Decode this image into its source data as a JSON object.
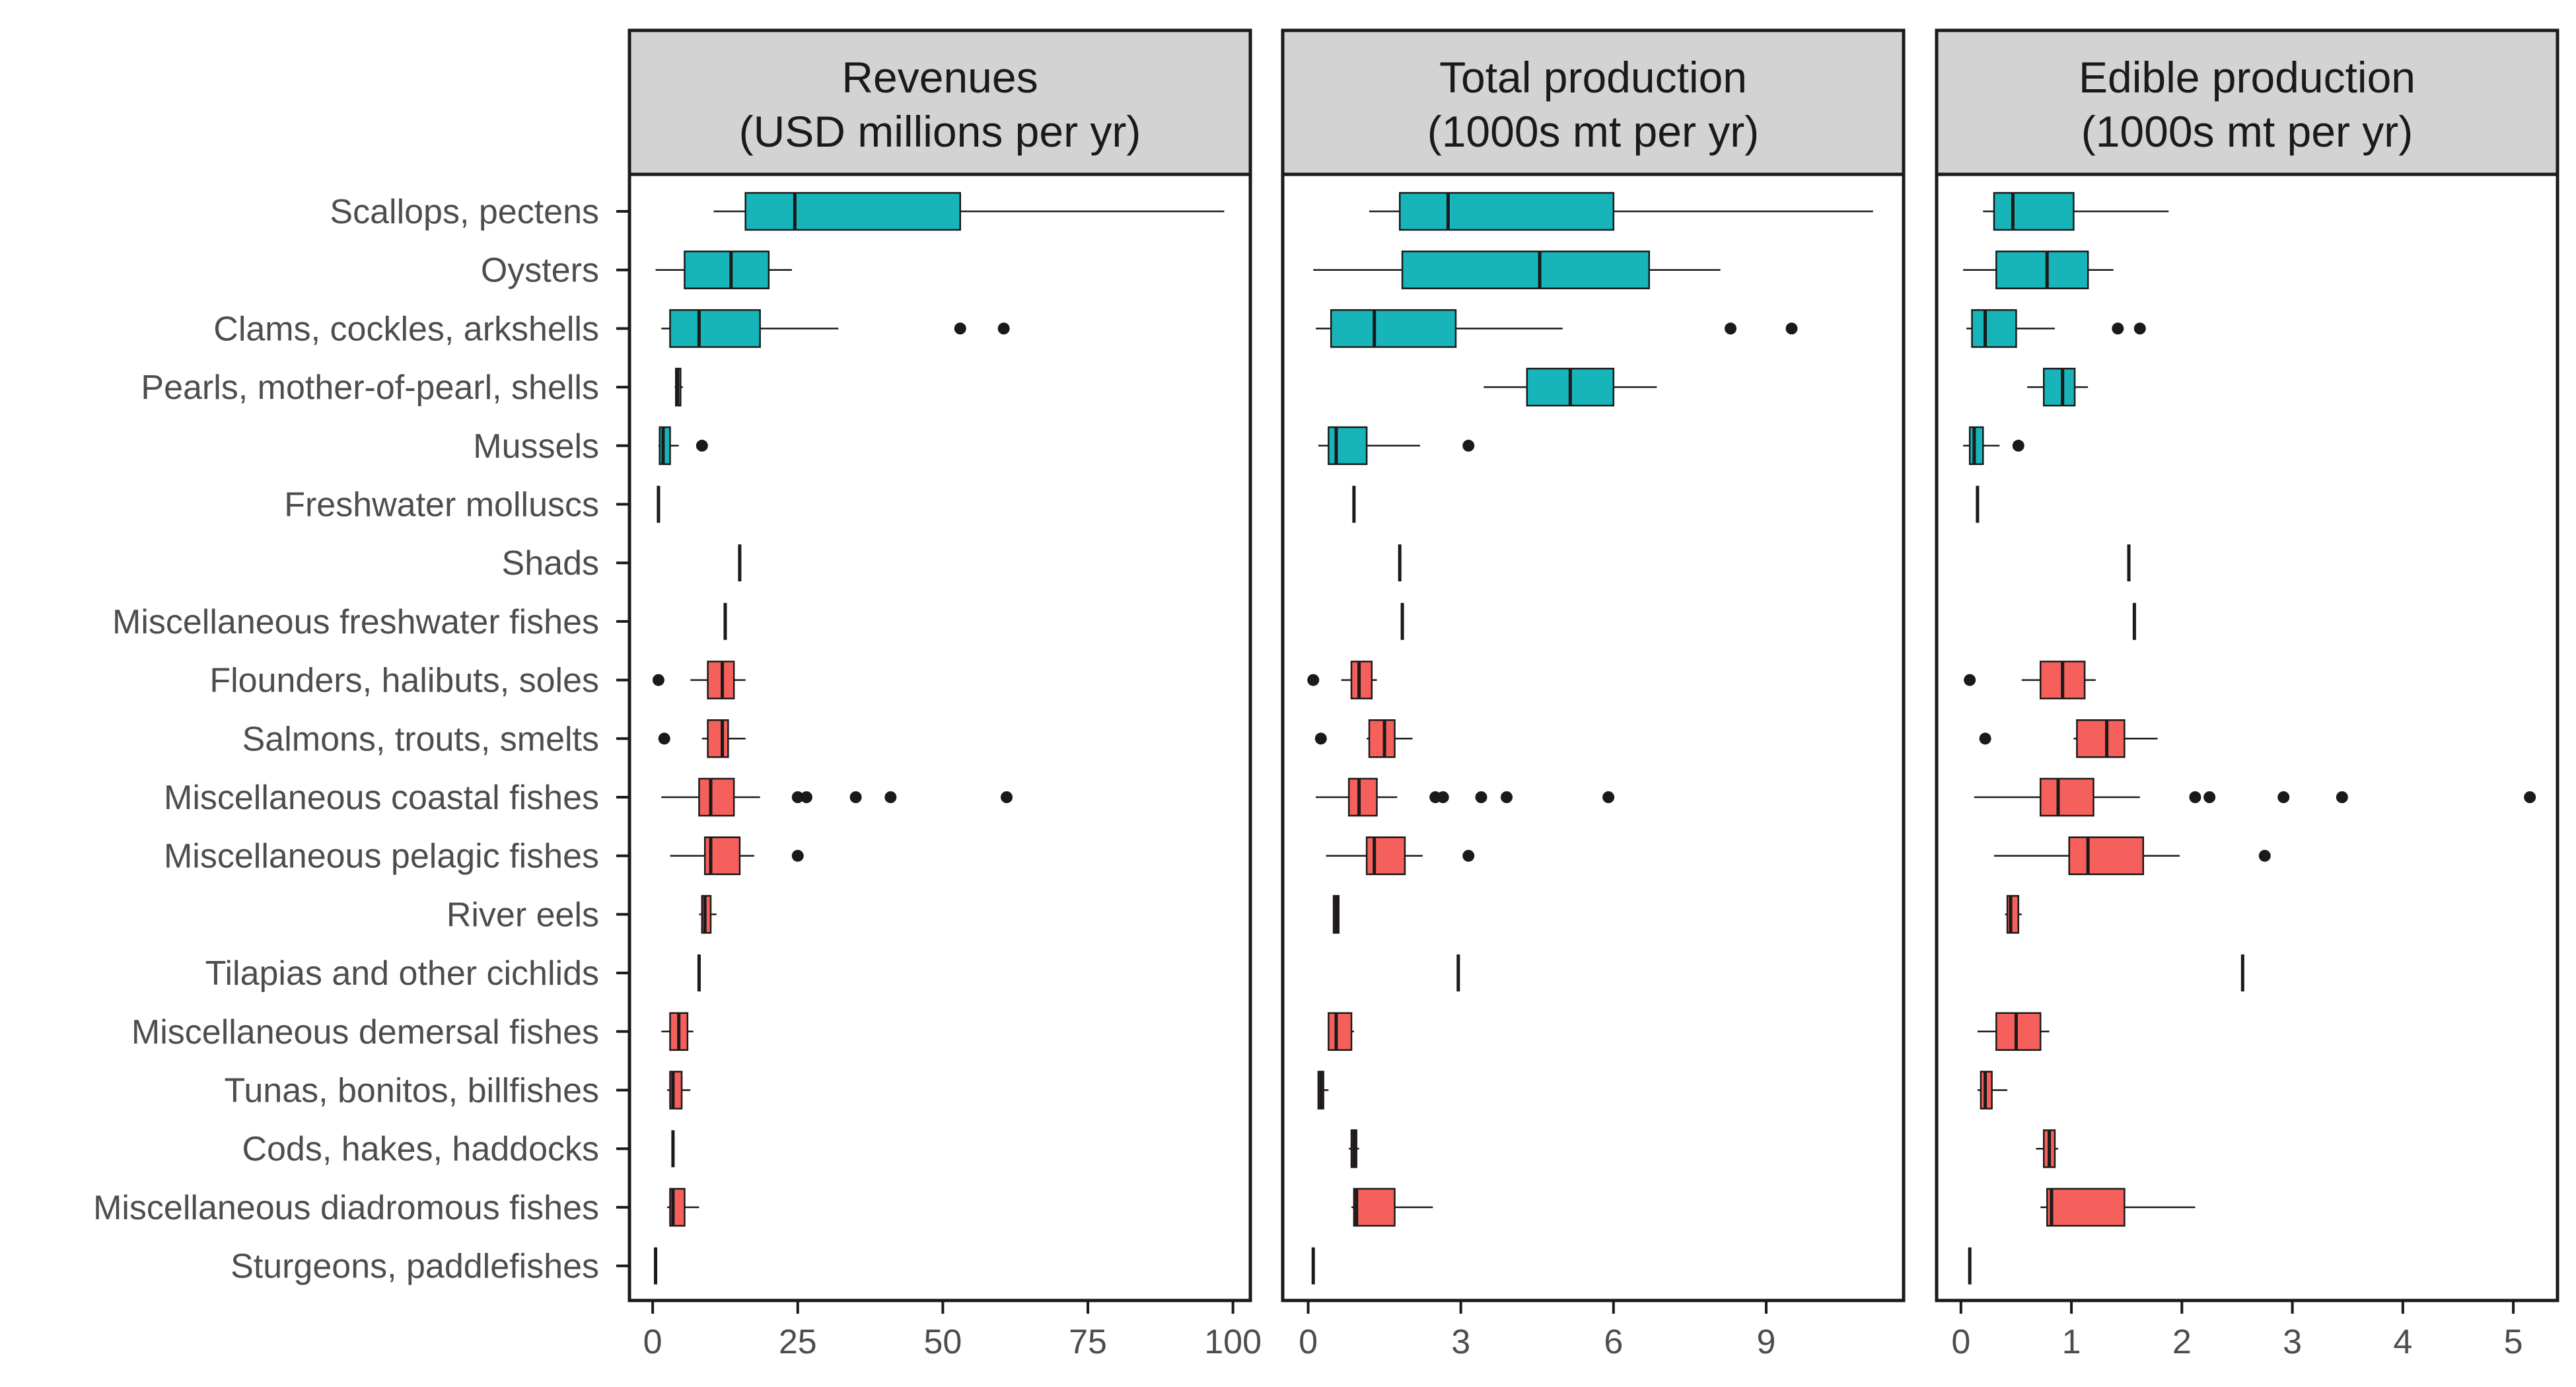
{
  "chart_data": {
    "type": "boxplot",
    "orientation": "horizontal",
    "categories": [
      "Scallops, pectens",
      "Oysters",
      "Clams, cockles, arkshells",
      "Pearls, mother-of-pearl, shells",
      "Mussels",
      "Freshwater molluscs",
      "Shads",
      "Miscellaneous freshwater fishes",
      "Flounders, halibuts, soles",
      "Salmons, trouts, smelts",
      "Miscellaneous coastal fishes",
      "Miscellaneous pelagic fishes",
      "River eels",
      "Tilapias and other cichlids",
      "Miscellaneous demersal fishes",
      "Tunas, bonitos, billfishes",
      "Cods, hakes, haddocks",
      "Miscellaneous diadromous fishes",
      "Sturgeons, paddlefishes"
    ],
    "category_group": [
      "mollusc",
      "mollusc",
      "mollusc",
      "mollusc",
      "mollusc",
      "mollusc",
      "fish",
      "fish",
      "fish",
      "fish",
      "fish",
      "fish",
      "fish",
      "fish",
      "fish",
      "fish",
      "fish",
      "fish",
      "fish"
    ],
    "colors": {
      "mollusc": "#17b4b9",
      "fish": "#f6605c",
      "outline": "#1a1a1a",
      "strip": "#d3d3d3"
    },
    "facets": [
      {
        "title_line1": "Revenues",
        "title_line2": "(USD millions per yr)",
        "xlim": [
          -4,
          103
        ],
        "ticks": [
          "0",
          "25",
          "50",
          "75",
          "100"
        ],
        "tick_values": [
          0,
          25,
          50,
          75,
          100
        ],
        "boxes": [
          {
            "whisker_low": 10.5,
            "q1": 16,
            "median": 24.5,
            "q3": 53,
            "whisker_high": 98.5,
            "outliers": []
          },
          {
            "whisker_low": 0.5,
            "q1": 5.5,
            "median": 13.5,
            "q3": 20,
            "whisker_high": 24,
            "outliers": []
          },
          {
            "whisker_low": 1.5,
            "q1": 3,
            "median": 8,
            "q3": 18.5,
            "whisker_high": 32,
            "outliers": [
              53,
              60.5
            ]
          },
          {
            "whisker_low": 3.8,
            "q1": 4,
            "median": 4.3,
            "q3": 4.8,
            "whisker_high": 5.2,
            "outliers": []
          },
          {
            "whisker_low": 1,
            "q1": 1.2,
            "median": 1.8,
            "q3": 3,
            "whisker_high": 4.5,
            "outliers": [
              8.5
            ]
          },
          {
            "whisker_low": 1,
            "q1": 1,
            "median": 1,
            "q3": 1,
            "whisker_high": 1,
            "outliers": []
          },
          {
            "whisker_low": 15,
            "q1": 15,
            "median": 15,
            "q3": 15,
            "whisker_high": 15,
            "outliers": []
          },
          {
            "whisker_low": 12.5,
            "q1": 12.5,
            "median": 12.5,
            "q3": 12.5,
            "whisker_high": 12.5,
            "outliers": []
          },
          {
            "whisker_low": 6.5,
            "q1": 9.5,
            "median": 12,
            "q3": 14,
            "whisker_high": 16,
            "outliers": [
              1
            ]
          },
          {
            "whisker_low": 8.5,
            "q1": 9.5,
            "median": 12,
            "q3": 13,
            "whisker_high": 16,
            "outliers": [
              2
            ]
          },
          {
            "whisker_low": 1.5,
            "q1": 8,
            "median": 10,
            "q3": 14,
            "whisker_high": 18.5,
            "outliers": [
              25,
              26.5,
              35,
              41,
              61
            ]
          },
          {
            "whisker_low": 3,
            "q1": 9,
            "median": 10,
            "q3": 15,
            "whisker_high": 17.5,
            "outliers": [
              25
            ]
          },
          {
            "whisker_low": 8,
            "q1": 8.5,
            "median": 9,
            "q3": 10,
            "whisker_high": 11,
            "outliers": []
          },
          {
            "whisker_low": 8,
            "q1": 8,
            "median": 8,
            "q3": 8,
            "whisker_high": 8,
            "outliers": []
          },
          {
            "whisker_low": 1.5,
            "q1": 3,
            "median": 4.5,
            "q3": 6,
            "whisker_high": 7,
            "outliers": []
          },
          {
            "whisker_low": 2.5,
            "q1": 3,
            "median": 3.5,
            "q3": 5,
            "whisker_high": 6.5,
            "outliers": []
          },
          {
            "whisker_low": 3.5,
            "q1": 3.5,
            "median": 3.5,
            "q3": 3.5,
            "whisker_high": 3.5,
            "outliers": []
          },
          {
            "whisker_low": 2.5,
            "q1": 3,
            "median": 3.5,
            "q3": 5.5,
            "whisker_high": 8,
            "outliers": []
          },
          {
            "whisker_low": 0.5,
            "q1": 0.5,
            "median": 0.5,
            "q3": 0.5,
            "whisker_high": 0.5,
            "outliers": []
          }
        ]
      },
      {
        "title_line1": "Total production",
        "title_line2": "(1000s mt per yr)",
        "xlim": [
          -0.5,
          11.7
        ],
        "ticks": [
          "0",
          "3",
          "6",
          "9"
        ],
        "tick_values": [
          0,
          3,
          6,
          9
        ],
        "boxes": [
          {
            "whisker_low": 1.2,
            "q1": 1.8,
            "median": 2.75,
            "q3": 6,
            "whisker_high": 11.1,
            "outliers": []
          },
          {
            "whisker_low": 0.1,
            "q1": 1.85,
            "median": 4.55,
            "q3": 6.7,
            "whisker_high": 8.1,
            "outliers": []
          },
          {
            "whisker_low": 0.15,
            "q1": 0.45,
            "median": 1.3,
            "q3": 2.9,
            "whisker_high": 5,
            "outliers": [
              8.3,
              9.5
            ]
          },
          {
            "whisker_low": 3.45,
            "q1": 4.3,
            "median": 5.15,
            "q3": 6,
            "whisker_high": 6.85,
            "outliers": []
          },
          {
            "whisker_low": 0.2,
            "q1": 0.4,
            "median": 0.55,
            "q3": 1.15,
            "whisker_high": 2.2,
            "outliers": [
              3.15
            ]
          },
          {
            "whisker_low": 0.9,
            "q1": 0.9,
            "median": 0.9,
            "q3": 0.9,
            "whisker_high": 0.9,
            "outliers": []
          },
          {
            "whisker_low": 1.8,
            "q1": 1.8,
            "median": 1.8,
            "q3": 1.8,
            "whisker_high": 1.8,
            "outliers": []
          },
          {
            "whisker_low": 1.85,
            "q1": 1.85,
            "median": 1.85,
            "q3": 1.85,
            "whisker_high": 1.85,
            "outliers": []
          },
          {
            "whisker_low": 0.65,
            "q1": 0.85,
            "median": 1,
            "q3": 1.25,
            "whisker_high": 1.35,
            "outliers": [
              0.1
            ]
          },
          {
            "whisker_low": 1.15,
            "q1": 1.2,
            "median": 1.5,
            "q3": 1.7,
            "whisker_high": 2.05,
            "outliers": [
              0.25
            ]
          },
          {
            "whisker_low": 0.15,
            "q1": 0.8,
            "median": 1,
            "q3": 1.35,
            "whisker_high": 1.75,
            "outliers": [
              2.5,
              2.65,
              3.4,
              3.9,
              5.9
            ]
          },
          {
            "whisker_low": 0.35,
            "q1": 1.15,
            "median": 1.3,
            "q3": 1.9,
            "whisker_high": 2.25,
            "outliers": [
              3.15
            ]
          },
          {
            "whisker_low": 0.5,
            "q1": 0.5,
            "median": 0.55,
            "q3": 0.6,
            "whisker_high": 0.6,
            "outliers": []
          },
          {
            "whisker_low": 2.95,
            "q1": 2.95,
            "median": 2.95,
            "q3": 2.95,
            "whisker_high": 2.95,
            "outliers": []
          },
          {
            "whisker_low": 0.4,
            "q1": 0.4,
            "median": 0.55,
            "q3": 0.85,
            "whisker_high": 0.9,
            "outliers": []
          },
          {
            "whisker_low": 0.2,
            "q1": 0.2,
            "median": 0.25,
            "q3": 0.3,
            "whisker_high": 0.4,
            "outliers": []
          },
          {
            "whisker_low": 0.8,
            "q1": 0.85,
            "median": 0.9,
            "q3": 0.95,
            "whisker_high": 1,
            "outliers": []
          },
          {
            "whisker_low": 0.85,
            "q1": 0.9,
            "median": 0.95,
            "q3": 1.7,
            "whisker_high": 2.45,
            "outliers": []
          },
          {
            "whisker_low": 0.1,
            "q1": 0.1,
            "median": 0.1,
            "q3": 0.1,
            "whisker_high": 0.1,
            "outliers": []
          }
        ]
      },
      {
        "title_line1": "Edible production",
        "title_line2": "(1000s mt per yr)",
        "xlim": [
          -0.22,
          5.4
        ],
        "ticks": [
          "0",
          "1",
          "2",
          "3",
          "4",
          "5"
        ],
        "tick_values": [
          0,
          1,
          2,
          3,
          4,
          5
        ],
        "boxes": [
          {
            "whisker_low": 0.2,
            "q1": 0.3,
            "median": 0.47,
            "q3": 1.02,
            "whisker_high": 1.88,
            "outliers": []
          },
          {
            "whisker_low": 0.02,
            "q1": 0.32,
            "median": 0.78,
            "q3": 1.15,
            "whisker_high": 1.38,
            "outliers": []
          },
          {
            "whisker_low": 0.05,
            "q1": 0.1,
            "median": 0.22,
            "q3": 0.5,
            "whisker_high": 0.85,
            "outliers": [
              1.42,
              1.62
            ]
          },
          {
            "whisker_low": 0.6,
            "q1": 0.75,
            "median": 0.92,
            "q3": 1.03,
            "whisker_high": 1.15,
            "outliers": []
          },
          {
            "whisker_low": 0.02,
            "q1": 0.08,
            "median": 0.12,
            "q3": 0.2,
            "whisker_high": 0.35,
            "outliers": [
              0.52
            ]
          },
          {
            "whisker_low": 0.15,
            "q1": 0.15,
            "median": 0.15,
            "q3": 0.15,
            "whisker_high": 0.15,
            "outliers": []
          },
          {
            "whisker_low": 1.52,
            "q1": 1.52,
            "median": 1.52,
            "q3": 1.52,
            "whisker_high": 1.52,
            "outliers": []
          },
          {
            "whisker_low": 1.57,
            "q1": 1.57,
            "median": 1.57,
            "q3": 1.57,
            "whisker_high": 1.57,
            "outliers": []
          },
          {
            "whisker_low": 0.55,
            "q1": 0.72,
            "median": 0.92,
            "q3": 1.12,
            "whisker_high": 1.22,
            "outliers": [
              0.08
            ]
          },
          {
            "whisker_low": 1.02,
            "q1": 1.05,
            "median": 1.32,
            "q3": 1.48,
            "whisker_high": 1.78,
            "outliers": [
              0.22
            ]
          },
          {
            "whisker_low": 0.12,
            "q1": 0.72,
            "median": 0.88,
            "q3": 1.2,
            "whisker_high": 1.62,
            "outliers": [
              2.12,
              2.25,
              2.92,
              3.45,
              5.15
            ]
          },
          {
            "whisker_low": 0.3,
            "q1": 0.98,
            "median": 1.15,
            "q3": 1.65,
            "whisker_high": 1.98,
            "outliers": [
              2.75
            ]
          },
          {
            "whisker_low": 0.4,
            "q1": 0.42,
            "median": 0.45,
            "q3": 0.52,
            "whisker_high": 0.55,
            "outliers": []
          },
          {
            "whisker_low": 2.55,
            "q1": 2.55,
            "median": 2.55,
            "q3": 2.55,
            "whisker_high": 2.55,
            "outliers": []
          },
          {
            "whisker_low": 0.15,
            "q1": 0.32,
            "median": 0.5,
            "q3": 0.72,
            "whisker_high": 0.8,
            "outliers": []
          },
          {
            "whisker_low": 0.15,
            "q1": 0.18,
            "median": 0.22,
            "q3": 0.28,
            "whisker_high": 0.42,
            "outliers": []
          },
          {
            "whisker_low": 0.68,
            "q1": 0.75,
            "median": 0.8,
            "q3": 0.85,
            "whisker_high": 0.88,
            "outliers": []
          },
          {
            "whisker_low": 0.72,
            "q1": 0.78,
            "median": 0.82,
            "q3": 1.48,
            "whisker_high": 2.12,
            "outliers": []
          },
          {
            "whisker_low": 0.08,
            "q1": 0.08,
            "median": 0.08,
            "q3": 0.08,
            "whisker_high": 0.08,
            "outliers": []
          }
        ]
      }
    ]
  }
}
